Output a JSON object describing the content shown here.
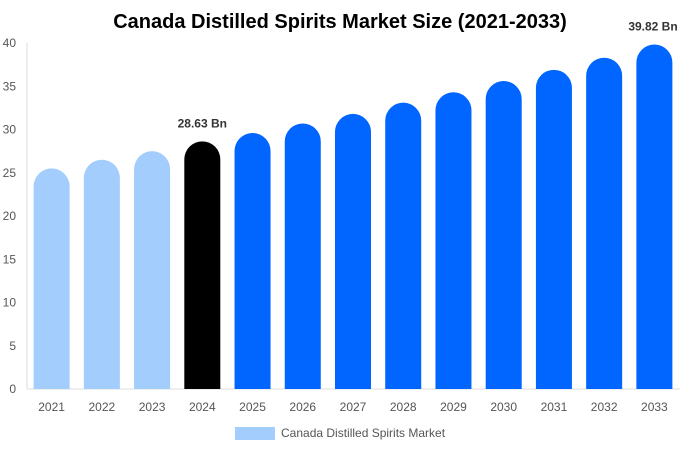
{
  "chart_data": {
    "type": "bar",
    "title": "Canada Distilled Spirits Market Size (2021-2033)",
    "xlabel": "",
    "ylabel": "",
    "ylim": [
      0,
      40
    ],
    "yticks": [
      0,
      5,
      10,
      15,
      20,
      25,
      30,
      35,
      40
    ],
    "grid": false,
    "legend_position": "bottom",
    "categories": [
      "2021",
      "2022",
      "2023",
      "2024",
      "2025",
      "2026",
      "2027",
      "2028",
      "2029",
      "2030",
      "2031",
      "2032",
      "2033"
    ],
    "series": [
      {
        "name": "Canada Distilled Spirits Market",
        "values": [
          25.5,
          26.5,
          27.5,
          28.63,
          29.6,
          30.7,
          31.8,
          33.1,
          34.3,
          35.6,
          36.9,
          38.3,
          39.82
        ]
      }
    ],
    "bar_colors": [
      "#a3cdfd",
      "#a3cdfd",
      "#a3cdfd",
      "#000000",
      "#0066ff",
      "#0066ff",
      "#0066ff",
      "#0066ff",
      "#0066ff",
      "#0066ff",
      "#0066ff",
      "#0066ff",
      "#0066ff"
    ],
    "legend_color": "#a3cdfd",
    "data_labels": [
      {
        "category": "2024",
        "text": "28.63 Bn"
      },
      {
        "category": "2033",
        "text": "39.82 Bn"
      }
    ]
  }
}
